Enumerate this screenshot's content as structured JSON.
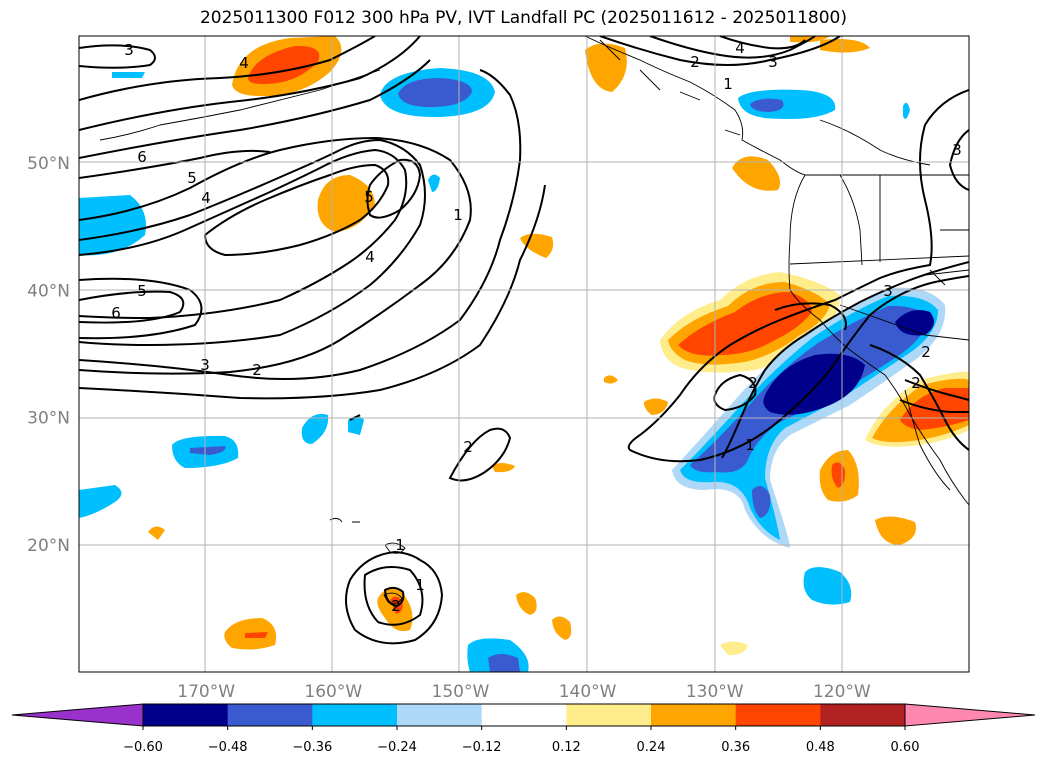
{
  "title": "2025011300 F012 300 hPa PV, IVT Landfall PC (2025011612 - 2025011800)",
  "chart_data": {
    "type": "heatmap",
    "title": "2025011300 F012 300 hPa PV, IVT Landfall PC (2025011612 - 2025011800)",
    "map_extent": {
      "lon": [
        -180,
        -110
      ],
      "lat": [
        10,
        60
      ]
    },
    "x_tick_labels": [
      "170°W",
      "160°W",
      "150°W",
      "140°W",
      "130°W",
      "120°W"
    ],
    "x_ticks": [
      -170,
      -160,
      -150,
      -140,
      -130,
      -120
    ],
    "y_tick_labels": [
      "50°N",
      "40°N",
      "30°N",
      "20°N"
    ],
    "y_ticks": [
      50,
      40,
      30,
      20
    ],
    "grid": true,
    "colorbar": {
      "tick_labels": [
        "−0.60",
        "−0.48",
        "−0.36",
        "−0.24",
        "−0.12",
        "0.12",
        "0.24",
        "0.36",
        "0.48",
        "0.60"
      ],
      "levels": [
        -0.6,
        -0.48,
        -0.36,
        -0.24,
        -0.12,
        0.12,
        0.24,
        0.36,
        0.48,
        0.6
      ],
      "colors": [
        "#9932cc",
        "#00008b",
        "#3a5bd0",
        "#00bfff",
        "#add8f8",
        "#ffffff",
        "#ffec8b",
        "#ffa500",
        "#ff4500",
        "#b22222",
        "#ff88b0"
      ],
      "extend": "both"
    },
    "contour_labels": [
      "3",
      "4",
      "4",
      "2",
      "3",
      "1",
      "6",
      "5",
      "4",
      "5",
      "1",
      "4",
      "5",
      "6",
      "3",
      "2",
      "2",
      "3",
      "2",
      "2",
      "1",
      "1",
      "1",
      "2",
      "3",
      "2"
    ]
  }
}
